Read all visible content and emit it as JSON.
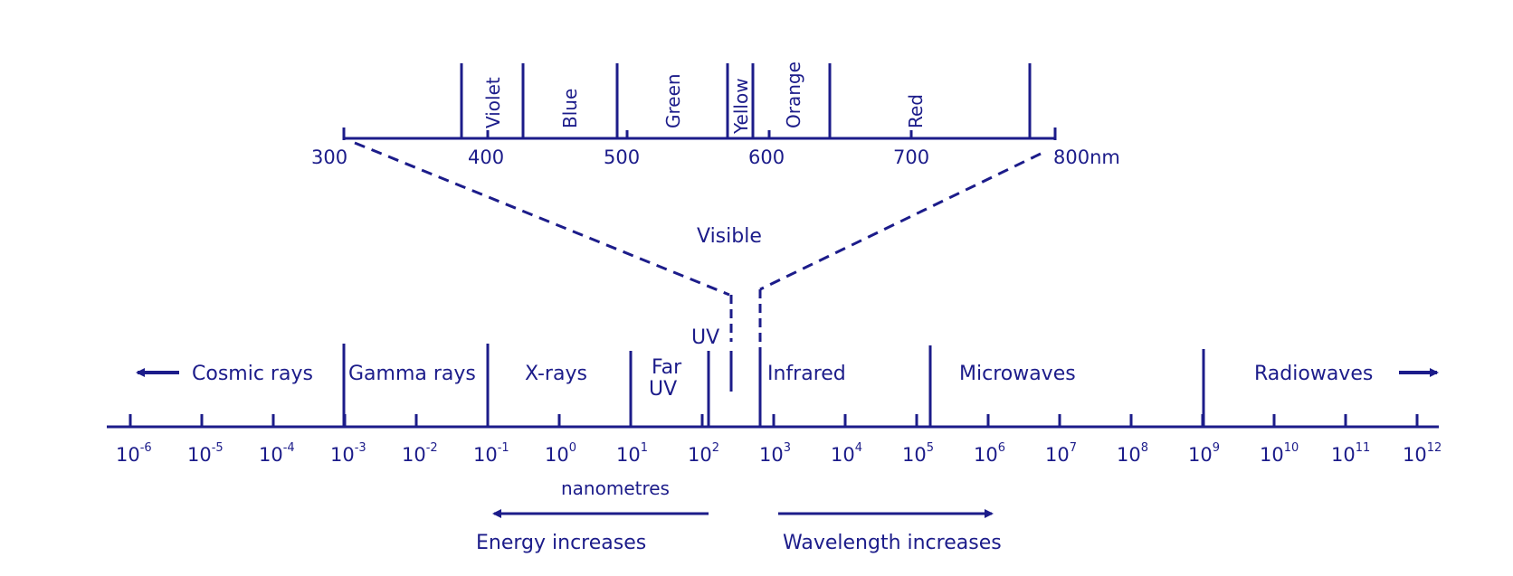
{
  "visible_scale": {
    "unit_suffix": "nm",
    "ticks": [
      "300",
      "400",
      "500",
      "600",
      "700",
      "800"
    ],
    "colors": [
      "Violet",
      "Blue",
      "Green",
      "Yellow",
      "Orange",
      "Red"
    ]
  },
  "visible_label": "Visible",
  "uv_label": "UV",
  "bands": {
    "cosmic": "Cosmic rays",
    "gamma": "Gamma rays",
    "xrays": "X-rays",
    "far": "Far",
    "far_uv": "UV",
    "infrared": "Infrared",
    "microwaves": "Microwaves",
    "radiowaves": "Radiowaves"
  },
  "main_scale": {
    "base": "10",
    "exponents": [
      "-6",
      "-5",
      "-4",
      "-3",
      "-2",
      "-1",
      "0",
      "1",
      "2",
      "3",
      "4",
      "5",
      "6",
      "7",
      "8",
      "9",
      "10",
      "11",
      "12"
    ],
    "unit": "nanometres"
  },
  "arrows": {
    "energy": "Energy increases",
    "wavelength": "Wavelength increases"
  },
  "ink_color": "#1c1c8a"
}
